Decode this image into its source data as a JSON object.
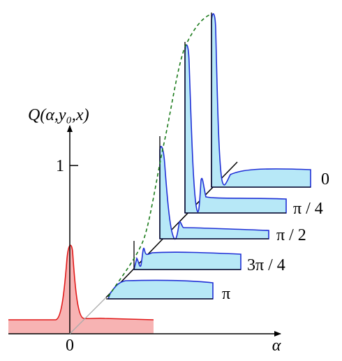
{
  "axes": {
    "y_label": "Q(α,y₀,x)",
    "y_tick": "1",
    "x_tick": "0",
    "x_label": "α"
  },
  "slices": [
    "0",
    "π / 4",
    "π / 2",
    "3π / 4",
    "π"
  ]
}
